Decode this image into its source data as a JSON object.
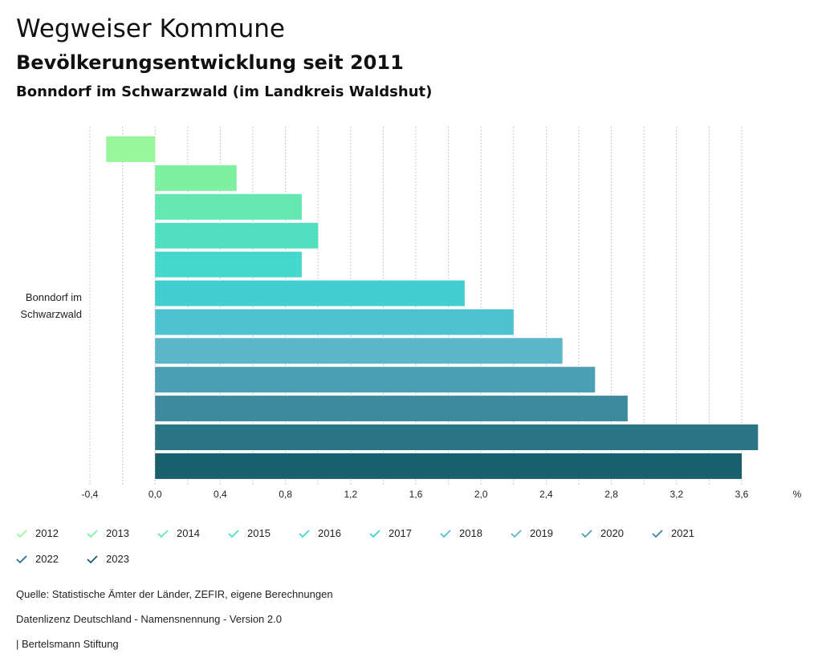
{
  "header": {
    "title": "Wegweiser Kommune",
    "subtitle": "Bevölkerungsentwicklung seit 2011",
    "region": "Bonndorf im Schwarzwald (im Landkreis Waldshut)"
  },
  "chart_data": {
    "type": "bar",
    "orientation": "horizontal",
    "categories": [
      "Bonndorf im Schwarzwald"
    ],
    "category_label_lines": [
      "Bonndorf im",
      "Schwarzwald"
    ],
    "series": [
      {
        "name": "2012",
        "values": [
          -0.3
        ],
        "color": "#98f79a"
      },
      {
        "name": "2013",
        "values": [
          0.5
        ],
        "color": "#7ef0a0"
      },
      {
        "name": "2014",
        "values": [
          0.9
        ],
        "color": "#62e8b0"
      },
      {
        "name": "2015",
        "values": [
          1.0
        ],
        "color": "#50e0c0"
      },
      {
        "name": "2016",
        "values": [
          0.9
        ],
        "color": "#44d8cc"
      },
      {
        "name": "2017",
        "values": [
          1.9
        ],
        "color": "#42ced0"
      },
      {
        "name": "2018",
        "values": [
          2.2
        ],
        "color": "#4ec2d0"
      },
      {
        "name": "2019",
        "values": [
          2.5
        ],
        "color": "#5ab6c8"
      },
      {
        "name": "2020",
        "values": [
          2.7
        ],
        "color": "#4a9fb4"
      },
      {
        "name": "2021",
        "values": [
          2.9
        ],
        "color": "#3d8a9e"
      },
      {
        "name": "2022",
        "values": [
          3.7
        ],
        "color": "#2a7585"
      },
      {
        "name": "2023",
        "values": [
          3.6
        ],
        "color": "#1a5f6e"
      }
    ],
    "xlim": [
      -0.4,
      3.6
    ],
    "xticks": [
      "-0,4",
      "0,0",
      "0,4",
      "0,8",
      "1,2",
      "1,6",
      "2,0",
      "2,4",
      "2,8",
      "3,2",
      "3,6"
    ],
    "xunit": "%",
    "grid": "vertical dotted",
    "legend_position": "bottom"
  },
  "footer": {
    "source": "Quelle: Statistische Ämter der Länder, ZEFIR, eigene Berechnungen",
    "license": "Datenlizenz Deutschland - Namensnennung - Version 2.0",
    "publisher": "| Bertelsmann Stiftung"
  }
}
